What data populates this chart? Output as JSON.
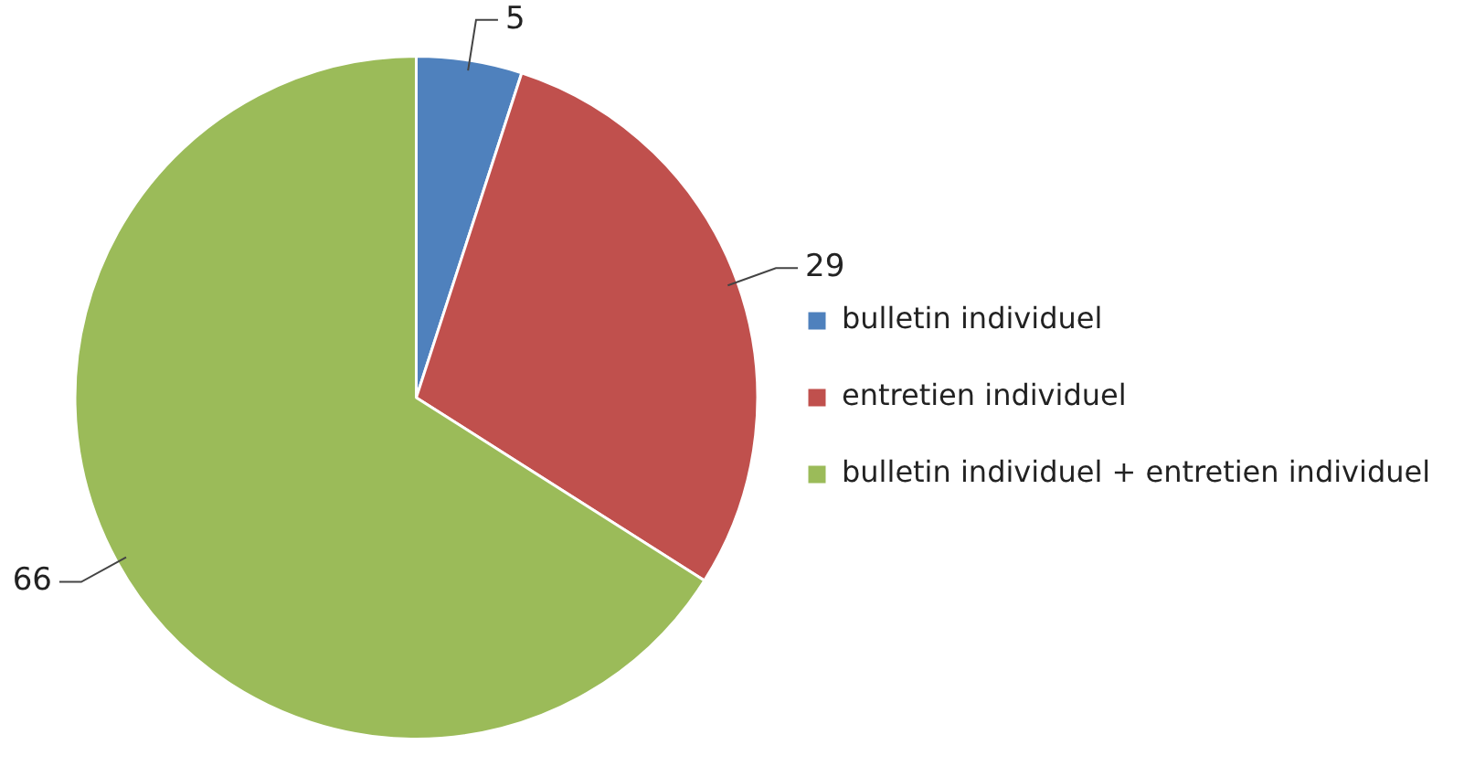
{
  "chart_data": {
    "type": "pie",
    "categories": [
      "bulletin individuel",
      "entretien individuel",
      "bulletin individuel + entretien individuel"
    ],
    "values": [
      5,
      29,
      66
    ],
    "colors": [
      "#4f81bd",
      "#c0504d",
      "#9bbb59"
    ],
    "data_labels": true,
    "legend": "right"
  }
}
